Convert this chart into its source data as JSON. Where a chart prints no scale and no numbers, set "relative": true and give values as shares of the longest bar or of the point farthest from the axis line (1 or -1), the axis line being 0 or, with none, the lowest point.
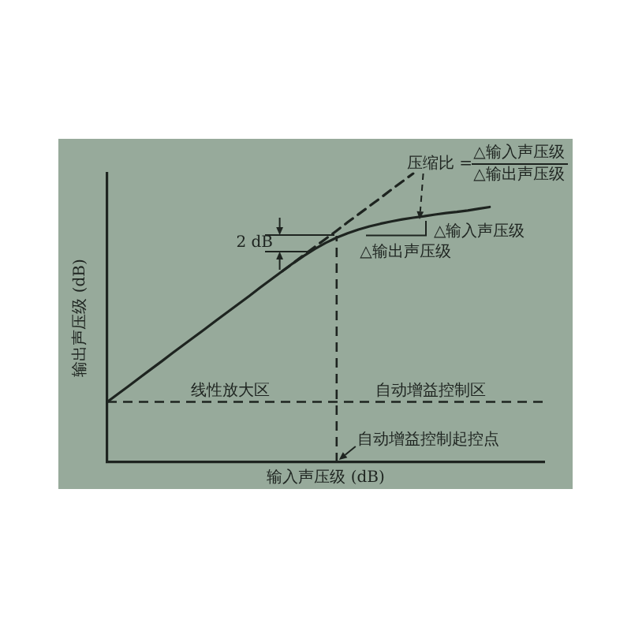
{
  "chart_data": {
    "type": "line",
    "xlabel": "输入声压级 (dB)",
    "ylabel": "输出声压级 (dB)",
    "relative": true,
    "grid": false,
    "legend": false,
    "marker": "none",
    "line_style": "solid",
    "categories": [
      null,
      null,
      null,
      null,
      null,
      null,
      null,
      null,
      null,
      null,
      null,
      null,
      null,
      null,
      null,
      null,
      null,
      null,
      null,
      null,
      null,
      null,
      null,
      null,
      null,
      null,
      null,
      null,
      null,
      null,
      null,
      null,
      null,
      null,
      null,
      null,
      null,
      null,
      null,
      null,
      null
    ],
    "series": [
      {
        "color": "#1e2420",
        "values": [
          0.209,
          0.237,
          0.265,
          0.294,
          0.322,
          0.35,
          0.379,
          0.407,
          0.435,
          0.463,
          0.492,
          0.52,
          0.548,
          0.576,
          0.605,
          0.633,
          0.661,
          0.689,
          0.715,
          0.739,
          0.76,
          0.778,
          0.793,
          0.806,
          0.817,
          0.826,
          0.834,
          0.841,
          0.847,
          0.852,
          0.858,
          0.863,
          0.867,
          0.872,
          0.878,
          0.884,
          null,
          null,
          null,
          null,
          null
        ]
      },
      {
        "color": "#1e2420",
        "line_style": "dashed",
        "values": [
          null,
          null,
          null,
          null,
          null,
          null,
          null,
          null,
          null,
          null,
          null,
          null,
          null,
          null,
          null,
          null,
          0.661,
          0.689,
          0.718,
          0.746,
          0.774,
          0.802,
          0.831,
          0.859,
          0.887,
          0.915,
          0.944,
          0.972,
          1.0,
          null,
          null,
          null,
          null,
          null,
          null,
          null,
          null,
          null,
          null,
          null,
          null
        ]
      }
    ],
    "ref_lines": [
      {
        "axis": "y",
        "value": 0.209,
        "line_style": "dashed",
        "color": "#1e2420"
      }
    ],
    "annotations": [
      "压缩比 =",
      "△输入声压级",
      "△输出声压级",
      "2 dB",
      "△输入声压级",
      "△输出声压级",
      "线性放大区",
      "自动增益控制区",
      "自动增益控制起控点"
    ]
  }
}
